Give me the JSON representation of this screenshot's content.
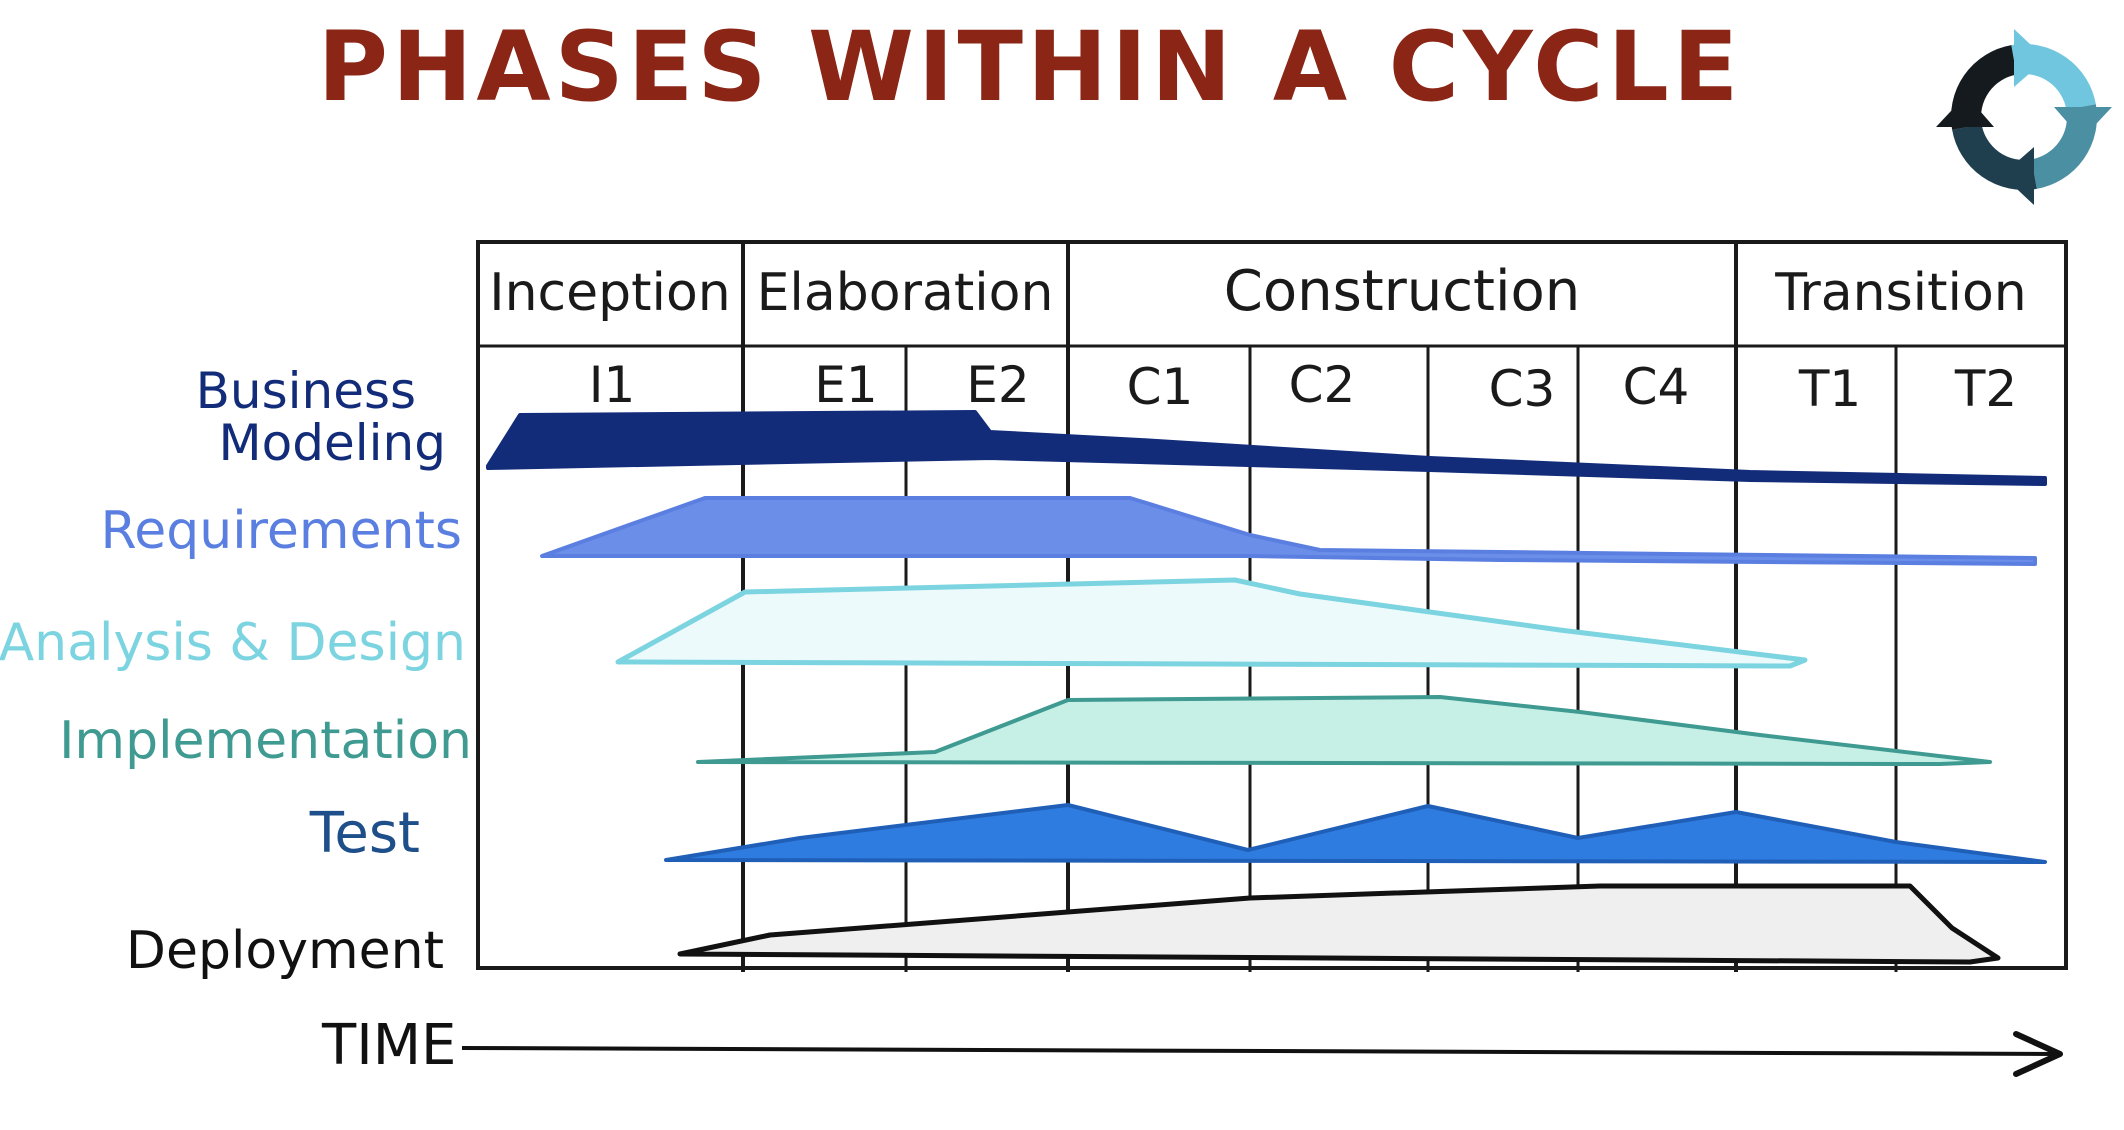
{
  "title": "PHASES WITHIN A CYCLE",
  "phases": [
    "Inception",
    "Elaboration",
    "Construction",
    "Transition"
  ],
  "iterations": [
    "I1",
    "E1",
    "E2",
    "C1",
    "C2",
    "C3",
    "C4",
    "T1",
    "T2"
  ],
  "disciplines": [
    "Business Modeling",
    "Requirements",
    "Analysis & Design",
    "Implementation",
    "Test",
    "Deployment"
  ],
  "time_label": "TIME",
  "colors": {
    "title": "#8b2516",
    "business_modeling": "#132c7a",
    "requirements": "#5a7fe0",
    "analysis_design": "#7cd4e0",
    "implementation": "#3f9a92",
    "test": "#2b6fd4",
    "deployment": "#111111"
  },
  "icon": "cycle-arrows-icon"
}
